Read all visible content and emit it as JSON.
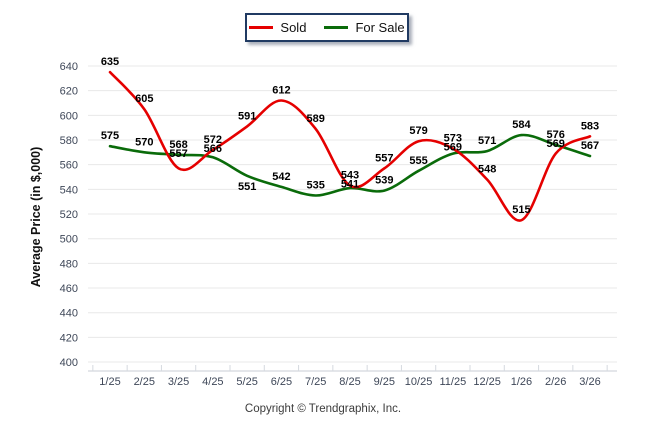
{
  "footer": {
    "copyright": "Copyright © Trendgraphix, Inc."
  },
  "colors": {
    "grid": "#e8e8e8",
    "axis_line": "#c9ced6",
    "tick_mark": "#d5d9df",
    "tick_text": "#3e4758",
    "data_label": "#000000",
    "legend_border": "#203a62",
    "sold": "#e50000",
    "for_sale": "#0a6b0a",
    "background": "#ffffff"
  },
  "chart_data": {
    "type": "line",
    "title": "",
    "ylabel": "Average Price (in $,000)",
    "xlabel": "",
    "categories": [
      "1/25",
      "2/25",
      "3/25",
      "4/25",
      "5/25",
      "6/25",
      "7/25",
      "8/25",
      "9/25",
      "10/25",
      "11/25",
      "12/25",
      "1/26",
      "2/26",
      "3/26"
    ],
    "series": [
      {
        "name": "Sold",
        "color": "#e50000",
        "values": [
          635,
          605,
          557,
          572,
          591,
          612,
          589,
          543,
          557,
          579,
          573,
          548,
          515,
          569,
          583
        ]
      },
      {
        "name": "For Sale",
        "color": "#0a6b0a",
        "values": [
          575,
          570,
          568,
          566,
          551,
          542,
          535,
          541,
          539,
          555,
          569,
          571,
          584,
          576,
          567
        ]
      }
    ],
    "ylim": [
      400,
      640
    ],
    "ytick_step": 20,
    "yticks": [
      400,
      420,
      440,
      460,
      480,
      500,
      520,
      540,
      560,
      580,
      600,
      620,
      640
    ],
    "grid": true,
    "smooth": true,
    "legend_position": "top-center"
  }
}
